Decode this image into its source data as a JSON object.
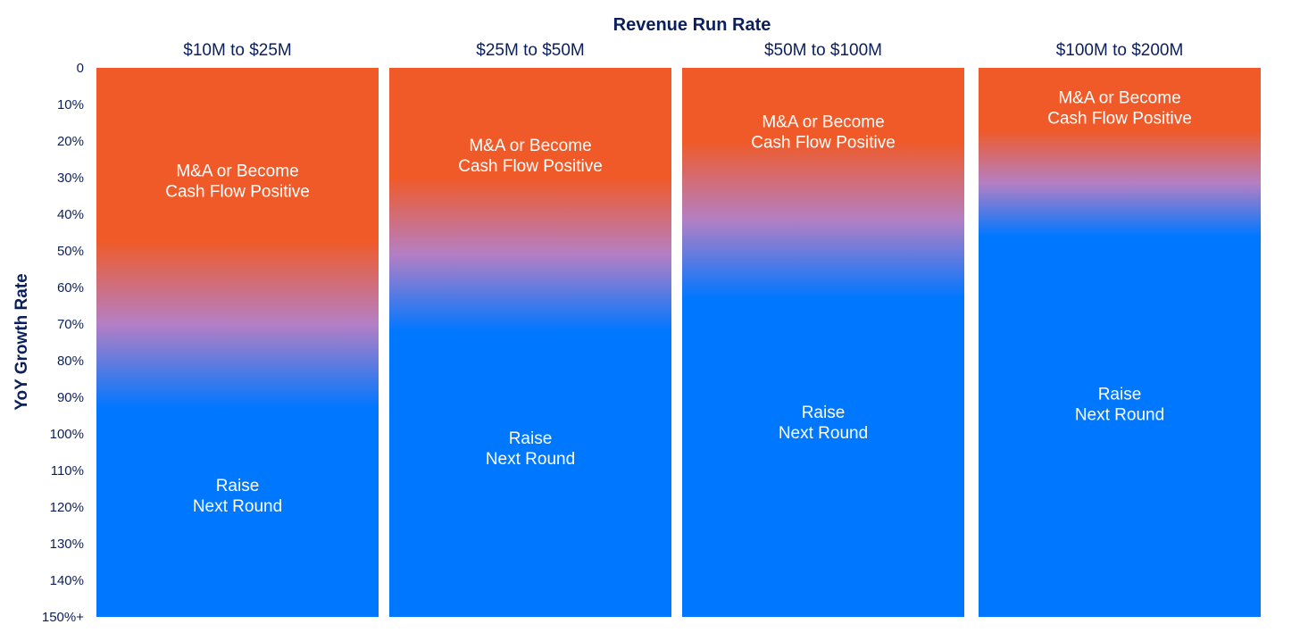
{
  "chart_data": {
    "type": "bar",
    "title": "Revenue Run Rate",
    "ylabel": "YoY Growth Rate",
    "xlabel": "",
    "categories": [
      "$10M to $25M",
      "$25M to $50M",
      "$50M to $100M",
      "$100M to $200M"
    ],
    "y_ticks": [
      "0",
      "10%",
      "20%",
      "30%",
      "40%",
      "50%",
      "60%",
      "70%",
      "80%",
      "90%",
      "100%",
      "110%",
      "120%",
      "130%",
      "140%",
      "150%+"
    ],
    "ylim": [
      0,
      150
    ],
    "y_direction": "downward",
    "zones": [
      {
        "name": "M&A or Become Cash Flow Positive",
        "lines": [
          "M&A or Become",
          "Cash Flow Positive"
        ],
        "color": "#f05a28"
      },
      {
        "name": "Raise Next Round",
        "lines": [
          "Raise",
          "Next Round"
        ],
        "color": "#0077ff"
      }
    ],
    "transition_start": [
      47,
      30,
      20,
      17
    ],
    "transition_end": [
      93,
      72,
      63,
      46
    ],
    "ma_label_center": [
      31,
      24,
      17.5,
      11
    ],
    "raise_label_center": [
      117,
      104,
      97,
      92
    ]
  }
}
